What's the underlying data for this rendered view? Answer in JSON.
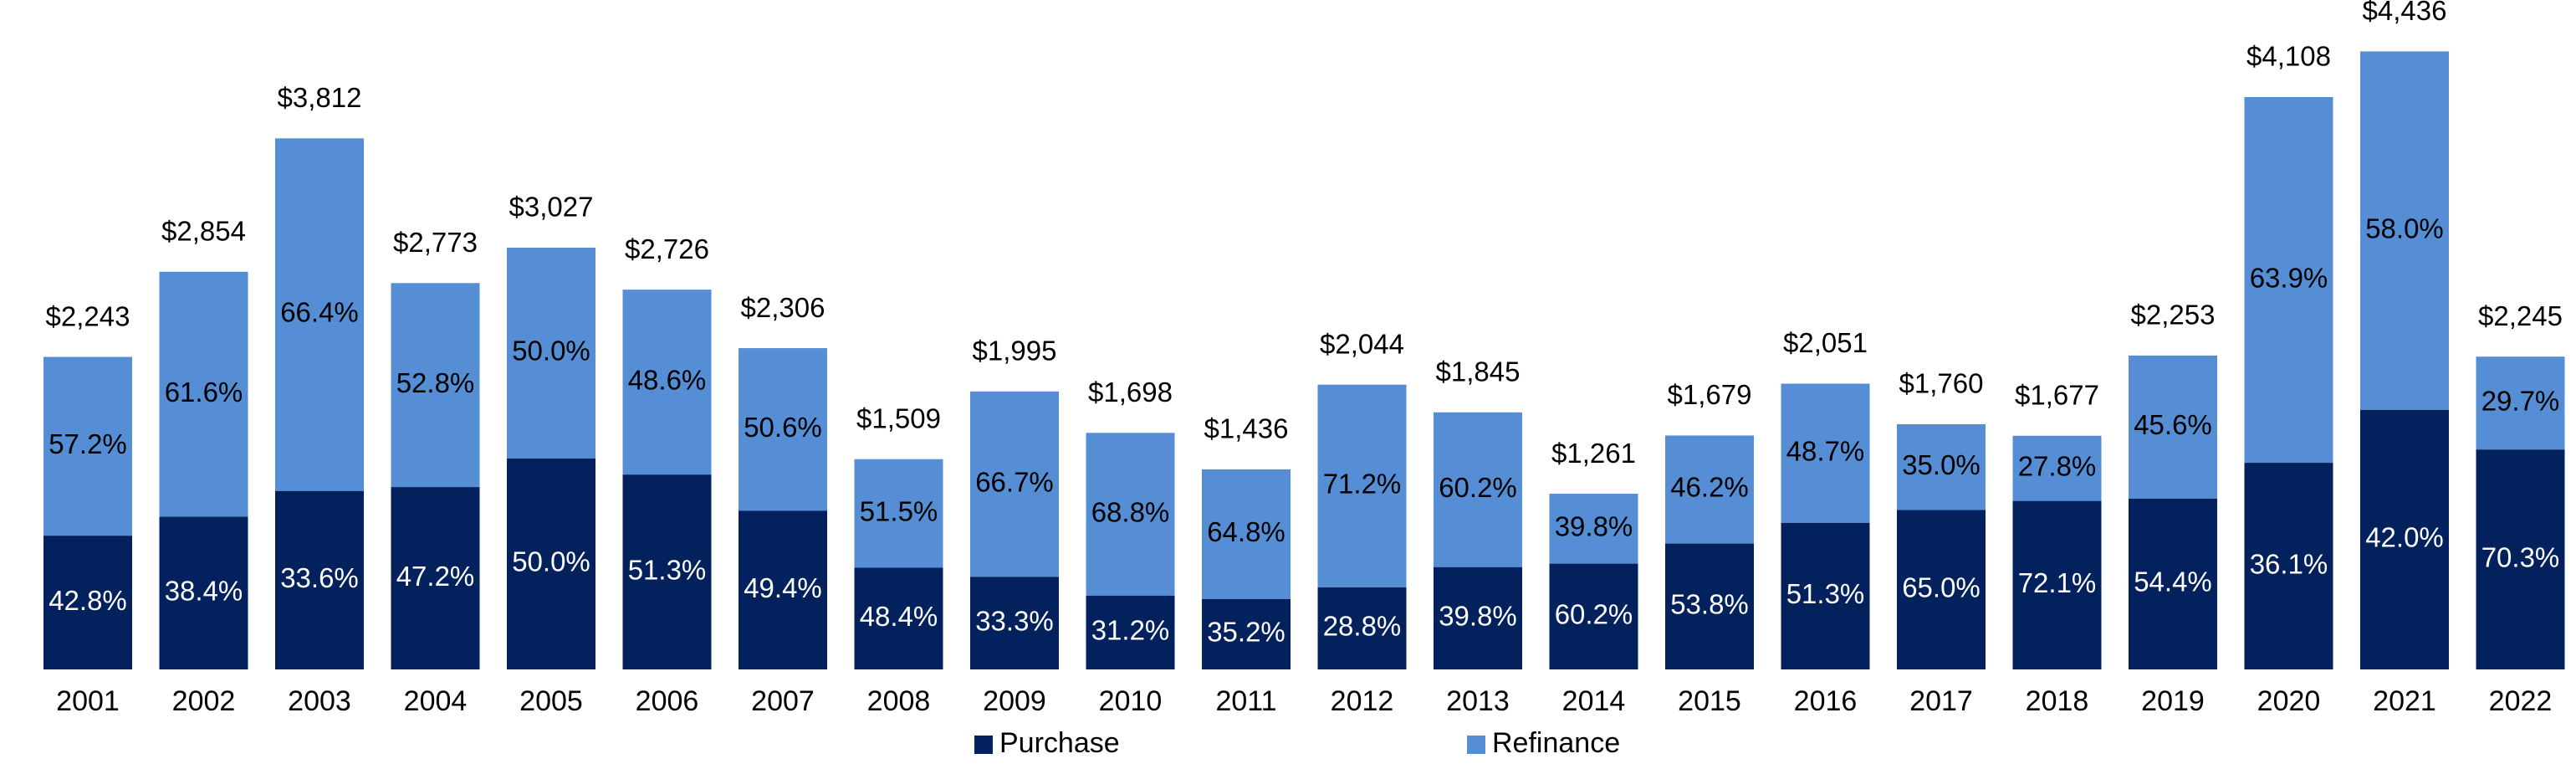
{
  "chart_data": {
    "type": "bar",
    "stacked": true,
    "title": "",
    "xlabel": "",
    "ylabel": "",
    "ylim": [
      0,
      4600
    ],
    "grid": false,
    "legend_position": "bottom-center",
    "value_prefix": "$",
    "categories": [
      "2001",
      "2002",
      "2003",
      "2004",
      "2005",
      "2006",
      "2007",
      "2008",
      "2009",
      "2010",
      "2011",
      "2012",
      "2013",
      "2014",
      "2015",
      "2016",
      "2017",
      "2018",
      "2019",
      "2020",
      "2021",
      "2022"
    ],
    "totals": [
      2243,
      2854,
      3812,
      2773,
      3027,
      2726,
      2306,
      1509,
      1995,
      1698,
      1436,
      2044,
      1845,
      1261,
      1679,
      2051,
      1760,
      1677,
      2253,
      4108,
      4436,
      2245
    ],
    "total_labels": [
      "$2,243",
      "$2,854",
      "$3,812",
      "$2,773",
      "$3,027",
      "$2,726",
      "$2,306",
      "$1,509",
      "$1,995",
      "$1,698",
      "$1,436",
      "$2,044",
      "$1,845",
      "$1,261",
      "$1,679",
      "$2,051",
      "$1,760",
      "$1,677",
      "$2,253",
      "$4,108",
      "$4,436",
      "$2,245"
    ],
    "series": [
      {
        "name": "Purchase",
        "color": "#03215c",
        "label_color": "#ffffff",
        "share_pct": [
          42.8,
          38.4,
          33.6,
          47.2,
          50.0,
          51.3,
          49.4,
          48.4,
          33.3,
          31.2,
          35.2,
          28.8,
          39.8,
          60.2,
          53.8,
          51.3,
          65.0,
          72.1,
          54.4,
          36.1,
          42.0,
          70.3
        ],
        "labels": [
          "42.8%",
          "38.4%",
          "33.6%",
          "47.2%",
          "50.0%",
          "51.3%",
          "49.4%",
          "48.4%",
          "33.3%",
          "31.2%",
          "35.2%",
          "28.8%",
          "39.8%",
          "60.2%",
          "53.8%",
          "51.3%",
          "65.0%",
          "72.1%",
          "54.4%",
          "36.1%",
          "42.0%",
          "70.3%"
        ]
      },
      {
        "name": "Refinance",
        "color": "#558ed5",
        "label_color": "#000000",
        "share_pct": [
          57.2,
          61.6,
          66.4,
          52.8,
          50.0,
          48.6,
          50.6,
          51.5,
          66.7,
          68.8,
          64.8,
          71.2,
          60.2,
          39.8,
          46.2,
          48.7,
          35.0,
          27.8,
          45.6,
          63.9,
          58.0,
          29.7
        ],
        "labels": [
          "57.2%",
          "61.6%",
          "66.4%",
          "52.8%",
          "50.0%",
          "48.6%",
          "50.6%",
          "51.5%",
          "66.7%",
          "68.8%",
          "64.8%",
          "71.2%",
          "60.2%",
          "39.8%",
          "46.2%",
          "48.7%",
          "35.0%",
          "27.8%",
          "45.6%",
          "63.9%",
          "58.0%",
          "29.7%"
        ]
      }
    ]
  }
}
